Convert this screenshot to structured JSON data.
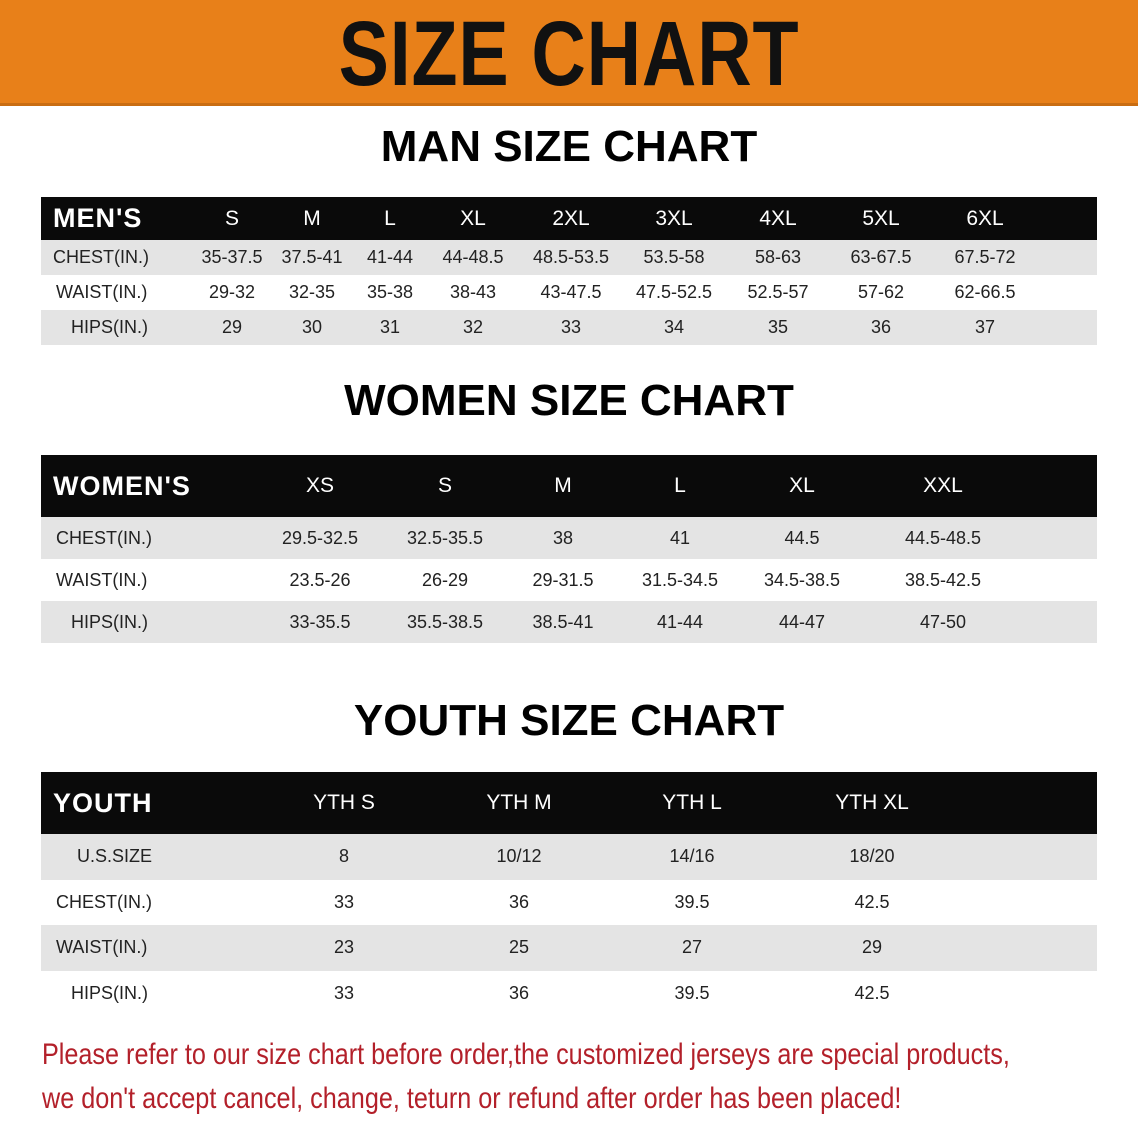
{
  "banner": {
    "title": "SIZE CHART",
    "color": "#e88019"
  },
  "men": {
    "title": "MAN SIZE CHART",
    "header": "MEN'S",
    "sizes": [
      "S",
      "M",
      "L",
      "XL",
      "2XL",
      "3XL",
      "4XL",
      "5XL",
      "6XL"
    ],
    "rows": [
      {
        "label": "CHEST(IN.)",
        "values": [
          "35-37.5",
          "37.5-41",
          "41-44",
          "44-48.5",
          "48.5-53.5",
          "53.5-58",
          "58-63",
          "63-67.5",
          "67.5-72"
        ]
      },
      {
        "label": "WAIST(IN.)",
        "values": [
          "29-32",
          "32-35",
          "35-38",
          "38-43",
          "43-47.5",
          "47.5-52.5",
          "52.5-57",
          "57-62",
          "62-66.5"
        ]
      },
      {
        "label": "HIPS(IN.)",
        "values": [
          "29",
          "30",
          "31",
          "32",
          "33",
          "34",
          "35",
          "36",
          "37"
        ]
      }
    ]
  },
  "women": {
    "title": "WOMEN SIZE CHART",
    "header": "WOMEN'S",
    "sizes": [
      "XS",
      "S",
      "M",
      "L",
      "XL",
      "XXL"
    ],
    "rows": [
      {
        "label": "CHEST(IN.)",
        "values": [
          "29.5-32.5",
          "32.5-35.5",
          "38",
          "41",
          "44.5",
          "44.5-48.5"
        ]
      },
      {
        "label": "WAIST(IN.)",
        "values": [
          "23.5-26",
          "26-29",
          "29-31.5",
          "31.5-34.5",
          "34.5-38.5",
          "38.5-42.5"
        ]
      },
      {
        "label": "HIPS(IN.)",
        "values": [
          "33-35.5",
          "35.5-38.5",
          "38.5-41",
          "41-44",
          "44-47",
          "47-50"
        ]
      }
    ]
  },
  "youth": {
    "title": "YOUTH SIZE CHART",
    "header": "YOUTH",
    "sizes": [
      "YTH S",
      "YTH M",
      "YTH L",
      "YTH XL"
    ],
    "rows": [
      {
        "label": "U.S.SIZE",
        "values": [
          "8",
          "10/12",
          "14/16",
          "18/20"
        ]
      },
      {
        "label": "CHEST(IN.)",
        "values": [
          "33",
          "36",
          "39.5",
          "42.5"
        ]
      },
      {
        "label": "WAIST(IN.)",
        "values": [
          "23",
          "25",
          "27",
          "29"
        ]
      },
      {
        "label": "HIPS(IN.)",
        "values": [
          "33",
          "36",
          "39.5",
          "42.5"
        ]
      }
    ]
  },
  "notice": {
    "line1": "Please refer to our size chart before order,the customized jerseys are special products,",
    "line2": "we don't accept cancel, change, teturn or refund after order has been placed!",
    "color": "#b3202a"
  }
}
